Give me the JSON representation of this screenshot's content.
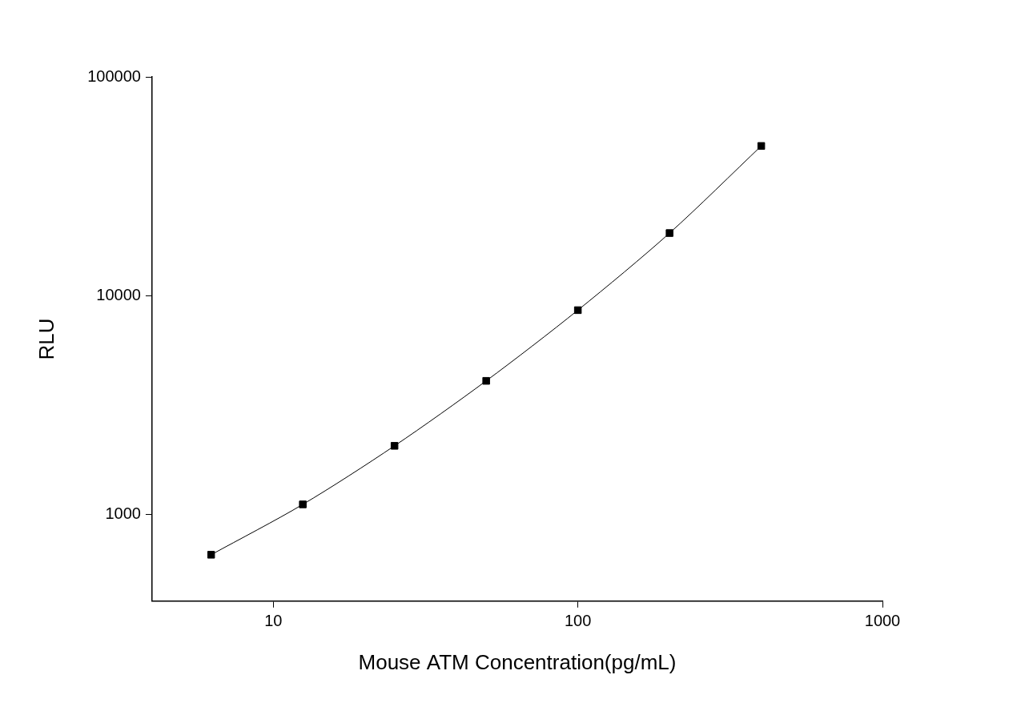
{
  "chart_data": {
    "type": "line",
    "x_label": "Mouse ATM Concentration(pg/mL)",
    "y_label": "RLU",
    "x": [
      6.25,
      12.5,
      25,
      50,
      100,
      200,
      400
    ],
    "values": [
      652,
      1108,
      2053,
      4070,
      8570,
      19300,
      48300
    ],
    "color": "#000000",
    "marker": "square",
    "line_style": "solid",
    "log": true,
    "grid": false,
    "xlim": [
      4,
      1000
    ],
    "ylim": [
      400,
      100000
    ],
    "xticks": [
      10,
      100,
      1000
    ],
    "yticks": [
      1000,
      10000,
      100000
    ]
  }
}
